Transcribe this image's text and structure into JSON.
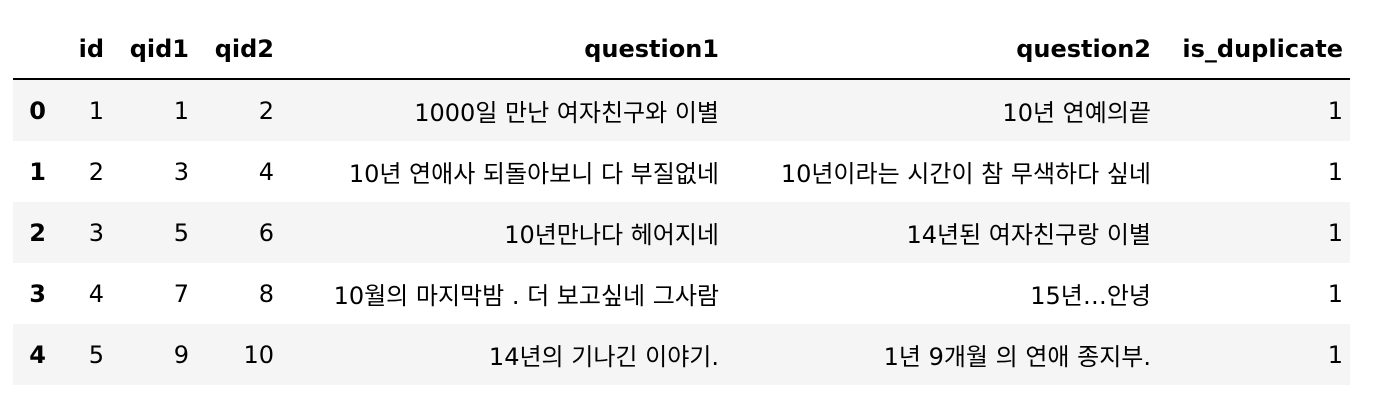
{
  "table": {
    "columns": [
      "",
      "id",
      "qid1",
      "qid2",
      "question1",
      "question2",
      "is_duplicate"
    ],
    "rows": [
      {
        "index": "0",
        "id": "1",
        "qid1": "1",
        "qid2": "2",
        "question1": "1000일 만난 여자친구와 이별",
        "question2": "10년 연예의끝",
        "is_duplicate": "1"
      },
      {
        "index": "1",
        "id": "2",
        "qid1": "3",
        "qid2": "4",
        "question1": "10년 연애사 되돌아보니 다 부질없네",
        "question2": "10년이라는 시간이 참 무색하다 싶네",
        "is_duplicate": "1"
      },
      {
        "index": "2",
        "id": "3",
        "qid1": "5",
        "qid2": "6",
        "question1": "10년만나다 헤어지네",
        "question2": "14년된 여자친구랑 이별",
        "is_duplicate": "1"
      },
      {
        "index": "3",
        "id": "4",
        "qid1": "7",
        "qid2": "8",
        "question1": "10월의 마지막밤 . 더 보고싶네 그사람",
        "question2": "15년…안녕",
        "is_duplicate": "1"
      },
      {
        "index": "4",
        "id": "5",
        "qid1": "9",
        "qid2": "10",
        "question1": "14년의 기나긴 이야기.",
        "question2": "1년 9개월 의 연애 종지부.",
        "is_duplicate": "1"
      }
    ]
  }
}
